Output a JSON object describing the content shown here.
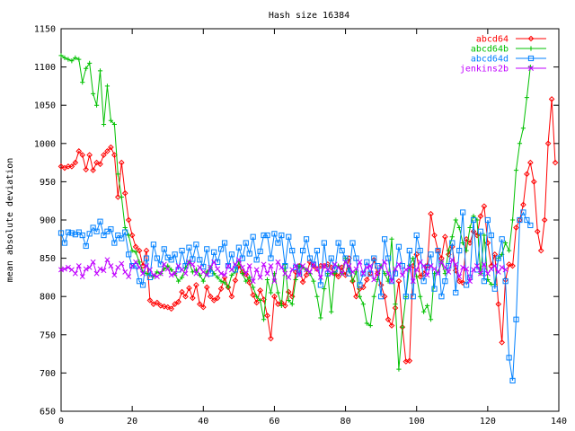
{
  "chart_data": {
    "type": "line",
    "title": "Hash size 16384",
    "xlabel": "",
    "ylabel": "mean absolute deviation",
    "xlim": [
      0,
      140
    ],
    "ylim": [
      650,
      1150
    ],
    "xticks": [
      0,
      20,
      40,
      60,
      80,
      100,
      120,
      140
    ],
    "yticks": [
      650,
      700,
      750,
      800,
      850,
      900,
      950,
      1000,
      1050,
      1100,
      1150
    ],
    "grid": false,
    "legend": "top-right",
    "series": [
      {
        "name": "abcd64",
        "color": "#ff0000",
        "marker": "diamond",
        "values": [
          970,
          968,
          970,
          970,
          975,
          990,
          985,
          966,
          985,
          965,
          975,
          973,
          985,
          990,
          995,
          985,
          930,
          975,
          935,
          900,
          880,
          865,
          860,
          840,
          860,
          795,
          790,
          792,
          788,
          787,
          786,
          784,
          790,
          793,
          806,
          800,
          811,
          798,
          815,
          790,
          786,
          812,
          800,
          795,
          798,
          810,
          825,
          812,
          800,
          821,
          840,
          832,
          829,
          818,
          802,
          792,
          808,
          796,
          775,
          745,
          800,
          790,
          792,
          788,
          806,
          800,
          832,
          840,
          819,
          828,
          845,
          840,
          836,
          840,
          840,
          842,
          838,
          830,
          826,
          838,
          828,
          850,
          820,
          800,
          810,
          812,
          822,
          830,
          848,
          830,
          815,
          800,
          770,
          762,
          785,
          820,
          760,
          715,
          716,
          840,
          855,
          826,
          830,
          840,
          908,
          880,
          860,
          850,
          878,
          855,
          865,
          834,
          820,
          818,
          875,
          870,
          885,
          880,
          905,
          918,
          870,
          840,
          855,
          790,
          740,
          822,
          842,
          840,
          890,
          900,
          920,
          960,
          975,
          950,
          885,
          860,
          900,
          1000,
          1058,
          975
        ]
      },
      {
        "name": "abcd64b",
        "color": "#00c000",
        "marker": "plus",
        "values": [
          1115,
          1112,
          1110,
          1108,
          1112,
          1110,
          1080,
          1098,
          1105,
          1065,
          1050,
          1095,
          1025,
          1075,
          1030,
          1025,
          960,
          930,
          890,
          880,
          860,
          858,
          845,
          832,
          830,
          828,
          826,
          832,
          830,
          836,
          840,
          835,
          830,
          820,
          825,
          838,
          845,
          832,
          835,
          828,
          820,
          832,
          838,
          830,
          825,
          820,
          818,
          812,
          828,
          832,
          845,
          830,
          820,
          825,
          812,
          800,
          795,
          770,
          822,
          805,
          830,
          805,
          788,
          842,
          795,
          790,
          822,
          840,
          838,
          835,
          830,
          820,
          800,
          772,
          810,
          830,
          780,
          830,
          840,
          830,
          850,
          836,
          820,
          832,
          800,
          790,
          765,
          762,
          800,
          822,
          840,
          830,
          820,
          875,
          790,
          705,
          760,
          800,
          840,
          850,
          826,
          800,
          780,
          788,
          770,
          830,
          832,
          845,
          830,
          860,
          878,
          900,
          890,
          870,
          860,
          890,
          905,
          900,
          830,
          880,
          822,
          816,
          816,
          850,
          855,
          870,
          860,
          900,
          965,
          1000,
          1020,
          1060,
          1100
        ]
      },
      {
        "name": "abcd64d",
        "color": "#0080ff",
        "marker": "square",
        "values": [
          883,
          870,
          884,
          883,
          881,
          884,
          880,
          866,
          882,
          890,
          885,
          898,
          880,
          885,
          888,
          870,
          880,
          876,
          884,
          855,
          840,
          840,
          820,
          815,
          850,
          825,
          868,
          850,
          842,
          862,
          851,
          848,
          855,
          835,
          860,
          840,
          864,
          849,
          868,
          848,
          839,
          862,
          830,
          858,
          845,
          862,
          870,
          840,
          855,
          835,
          864,
          850,
          870,
          856,
          878,
          848,
          859,
          880,
          880,
          850,
          882,
          870,
          880,
          840,
          878,
          860,
          838,
          830,
          860,
          875,
          850,
          842,
          860,
          815,
          870,
          830,
          850,
          835,
          870,
          860,
          850,
          830,
          870,
          850,
          815,
          830,
          845,
          830,
          850,
          840,
          800,
          875,
          850,
          820,
          830,
          865,
          840,
          800,
          860,
          800,
          880,
          860,
          820,
          838,
          855,
          810,
          860,
          800,
          820,
          840,
          870,
          805,
          860,
          910,
          815,
          825,
          900,
          835,
          885,
          820,
          900,
          880,
          810,
          850,
          875,
          820,
          720,
          690,
          770,
          900,
          910,
          900,
          893
        ]
      },
      {
        "name": "jenkins2b",
        "color": "#c000ff",
        "marker": "cross",
        "values": [
          835,
          836,
          838,
          835,
          830,
          840,
          826,
          836,
          838,
          845,
          830,
          836,
          834,
          848,
          840,
          828,
          838,
          843,
          832,
          826,
          840,
          845,
          838,
          830,
          840,
          835,
          828,
          826,
          830,
          842,
          836,
          828,
          830,
          840,
          835,
          830,
          845,
          842,
          830,
          838,
          832,
          828,
          838,
          845,
          836,
          830,
          828,
          840,
          835,
          842,
          848,
          838,
          830,
          840,
          820,
          835,
          825,
          842,
          830,
          840,
          820,
          845,
          838,
          830,
          825,
          835,
          840,
          828,
          840,
          835,
          832,
          842,
          836,
          825,
          840,
          835,
          830,
          842,
          838,
          830,
          845,
          840,
          832,
          836,
          845,
          830,
          838,
          840,
          822,
          830,
          838,
          845,
          830,
          820,
          836,
          842,
          828,
          835,
          838,
          820,
          835,
          845,
          840,
          828,
          840,
          836,
          830,
          845,
          838,
          832,
          848,
          842,
          826,
          838,
          836,
          820,
          835,
          840,
          830,
          842,
          830,
          836,
          840,
          832,
          838,
          835
        ]
      }
    ]
  }
}
